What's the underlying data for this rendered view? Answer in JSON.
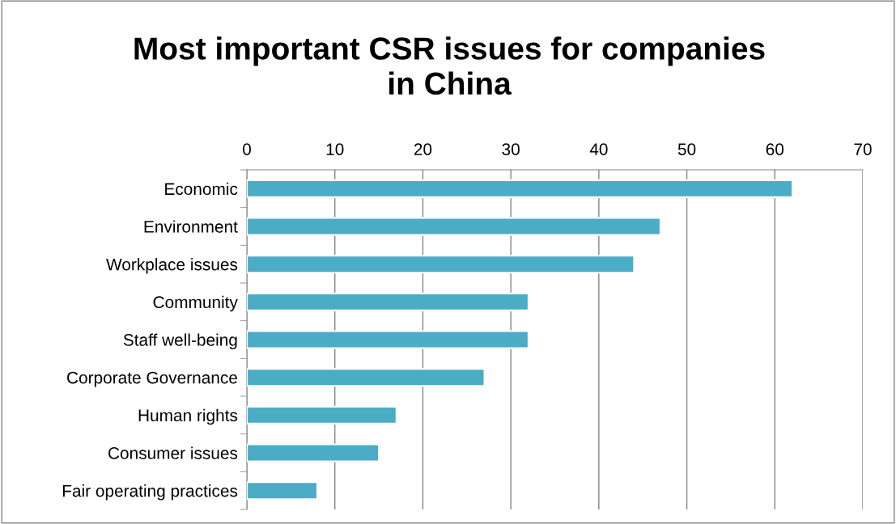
{
  "chart_data": {
    "type": "bar",
    "orientation": "horizontal",
    "title": "Most important CSR issues for companies\nin China",
    "categories": [
      "Economic",
      "Environment",
      "Workplace issues",
      "Community",
      "Staff well-being",
      "Corporate Governance",
      "Human rights",
      "Consumer issues",
      "Fair operating practices"
    ],
    "values": [
      62,
      47,
      44,
      32,
      32,
      27,
      17,
      15,
      8
    ],
    "color": "#4bacc6",
    "xlim": [
      0,
      70
    ],
    "xticks": [
      0,
      10,
      20,
      30,
      40,
      50,
      60,
      70
    ],
    "grid": "x"
  }
}
